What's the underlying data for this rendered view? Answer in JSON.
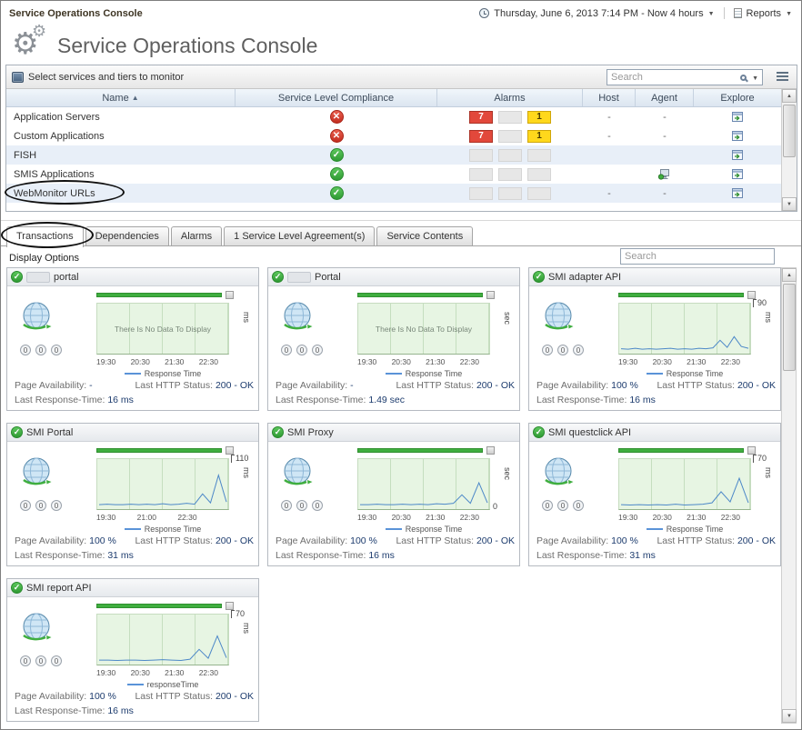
{
  "glyphs": {
    "check": "✓",
    "cross": "✕",
    "sort_asc": "▲",
    "dropdown": "▼",
    "scroll_up": "▲",
    "scroll_down": "▼"
  },
  "colors": {
    "alarm_fatal_bg": "#e2483b",
    "alarm_warning_bg": "#ffd81c",
    "alarm_empty_bg": "#e7e7e7",
    "status_ok": "#2f9a33",
    "status_error": "#c22d20",
    "chart_fill": "#e7f5e3",
    "chart_bar": "#3fae3f",
    "chart_line": "#4d88c8"
  },
  "topbar": {
    "breadcrumb": "Service Operations Console",
    "time_range": "Thursday, June 6, 2013 7:14 PM - Now 4 hours",
    "reports": "Reports"
  },
  "header": {
    "title": "Service Operations Console"
  },
  "services_panel": {
    "title": "Select services and tiers to monitor",
    "search_placeholder": "Search",
    "columns": {
      "name": "Name",
      "compliance": "Service Level Compliance",
      "alarms": "Alarms",
      "host": "Host",
      "agent": "Agent",
      "explore": "Explore"
    },
    "rows": [
      {
        "name": "Application Servers",
        "compliance": "error",
        "alarms": [
          "7",
          "",
          "1"
        ],
        "host": "-",
        "agent_text": "-",
        "agent_icon": false
      },
      {
        "name": "Custom Applications",
        "compliance": "error",
        "alarms": [
          "7",
          "",
          "1"
        ],
        "host": "-",
        "agent_text": "-",
        "agent_icon": false
      },
      {
        "name": "FISH",
        "compliance": "ok",
        "alarms": [
          "",
          "",
          ""
        ],
        "host": "",
        "agent_text": "",
        "agent_icon": false
      },
      {
        "name": "SMIS Applications",
        "compliance": "ok",
        "alarms": [
          "",
          "",
          ""
        ],
        "host": "",
        "agent_text": "",
        "agent_icon": true
      },
      {
        "name": "WebMonitor URLs",
        "compliance": "ok",
        "alarms": [
          "",
          "",
          ""
        ],
        "host": "-",
        "agent_text": "-",
        "agent_icon": false
      }
    ]
  },
  "tabs": [
    {
      "label": "Transactions",
      "active": true
    },
    {
      "label": "Dependencies",
      "active": false
    },
    {
      "label": "Alarms",
      "active": false
    },
    {
      "label": "1 Service Level Agreement(s)",
      "active": false
    },
    {
      "label": "Service Contents",
      "active": false
    }
  ],
  "toolbar": {
    "display_options": "Display Options",
    "search_placeholder": "Search"
  },
  "cards": [
    {
      "title": "portal",
      "extra_icon": true,
      "counters": [
        "0",
        "0",
        "0"
      ],
      "chart": {
        "no_data_text": "There Is No Data To Display",
        "unit": "ms",
        "y_top": "",
        "y_bottom": "",
        "x_ticks": [
          "19:30",
          "20:30",
          "21:30",
          "22:30"
        ],
        "legend": "Response Time",
        "spark": []
      },
      "pa_label": "Page Availability:",
      "pa_value": "-",
      "http_label": "Last HTTP Status:",
      "http_value": "200 - OK",
      "rt_label": "Last Response-Time:",
      "rt_value": "16 ms"
    },
    {
      "title": "Portal",
      "extra_icon": true,
      "counters": [
        "0",
        "0",
        "0"
      ],
      "chart": {
        "no_data_text": "There Is No Data To Display",
        "unit": "sec",
        "y_top": "",
        "y_bottom": "",
        "x_ticks": [
          "19:30",
          "20:30",
          "21:30",
          "22:30"
        ],
        "legend": "Response Time",
        "spark": []
      },
      "pa_label": "Page Availability:",
      "pa_value": "-",
      "http_label": "Last HTTP Status:",
      "http_value": "200 - OK",
      "rt_label": "Last Response-Time:",
      "rt_value": "1.49 sec"
    },
    {
      "title": "SMI adapter API",
      "extra_icon": false,
      "counters": [
        "0",
        "0",
        "0"
      ],
      "chart": {
        "no_data_text": "",
        "unit": "ms",
        "y_top": "90",
        "y_bottom": "",
        "x_ticks": [
          "19:30",
          "20:30",
          "21:30",
          "22:30"
        ],
        "legend": "Response Time",
        "spark": [
          7,
          6,
          8,
          6,
          7,
          6,
          7,
          8,
          6,
          7,
          6,
          8,
          7,
          9,
          26,
          10,
          34,
          12,
          8
        ]
      },
      "pa_label": "Page Availability:",
      "pa_value": "100 %",
      "http_label": "Last HTTP Status:",
      "http_value": "200 - OK",
      "rt_label": "Last Response-Time:",
      "rt_value": "16 ms"
    },
    {
      "title": "SMI Portal",
      "extra_icon": false,
      "counters": [
        "0",
        "0",
        "0"
      ],
      "chart": {
        "no_data_text": "",
        "unit": "ms",
        "y_top": "110",
        "y_bottom": "",
        "x_ticks": [
          "19:30",
          "21:00",
          "22:30"
        ],
        "legend": "Response Time",
        "spark": [
          6,
          7,
          6,
          6,
          7,
          6,
          7,
          6,
          8,
          6,
          7,
          9,
          7,
          30,
          10,
          72,
          12
        ]
      },
      "pa_label": "Page Availability:",
      "pa_value": "100 %",
      "http_label": "Last HTTP Status:",
      "http_value": "200 - OK",
      "rt_label": "Last Response-Time:",
      "rt_value": "31 ms"
    },
    {
      "title": "SMI Proxy",
      "extra_icon": false,
      "counters": [
        "0",
        "0",
        "0"
      ],
      "chart": {
        "no_data_text": "",
        "unit": "sec",
        "y_top": "",
        "y_bottom": "0",
        "x_ticks": [
          "19:30",
          "20:30",
          "21:30",
          "22:30"
        ],
        "legend": "Response Time",
        "spark": [
          6,
          6,
          7,
          6,
          6,
          7,
          6,
          7,
          6,
          8,
          7,
          9,
          28,
          9,
          55,
          10
        ]
      },
      "pa_label": "Page Availability:",
      "pa_value": "100 %",
      "http_label": "Last HTTP Status:",
      "http_value": "200 - OK",
      "rt_label": "Last Response-Time:",
      "rt_value": "16 ms"
    },
    {
      "title": "SMI questclick API",
      "extra_icon": false,
      "counters": [
        "0",
        "0",
        "0"
      ],
      "chart": {
        "no_data_text": "",
        "unit": "ms",
        "y_top": "70",
        "y_bottom": "",
        "x_ticks": [
          "19:30",
          "20:30",
          "21:30",
          "22:30"
        ],
        "legend": "Response Time",
        "spark": [
          6,
          5,
          6,
          5,
          6,
          5,
          7,
          5,
          6,
          7,
          10,
          35,
          12,
          65,
          10
        ]
      },
      "pa_label": "Page Availability:",
      "pa_value": "100 %",
      "http_label": "Last HTTP Status:",
      "http_value": "200 - OK",
      "rt_label": "Last Response-Time:",
      "rt_value": "31 ms"
    },
    {
      "title": "SMI report API",
      "extra_icon": false,
      "counters": [
        "0",
        "0",
        "0"
      ],
      "chart": {
        "no_data_text": "",
        "unit": "ms",
        "y_top": "70",
        "y_bottom": "",
        "x_ticks": [
          "19:30",
          "20:30",
          "21:30",
          "22:30"
        ],
        "legend": "responseTime",
        "spark": [
          6,
          6,
          5,
          6,
          6,
          5,
          6,
          7,
          6,
          5,
          8,
          30,
          10,
          60,
          11
        ]
      },
      "pa_label": "Page Availability:",
      "pa_value": "100 %",
      "http_label": "Last HTTP Status:",
      "http_value": "200 - OK",
      "rt_label": "Last Response-Time:",
      "rt_value": "16 ms"
    }
  ]
}
